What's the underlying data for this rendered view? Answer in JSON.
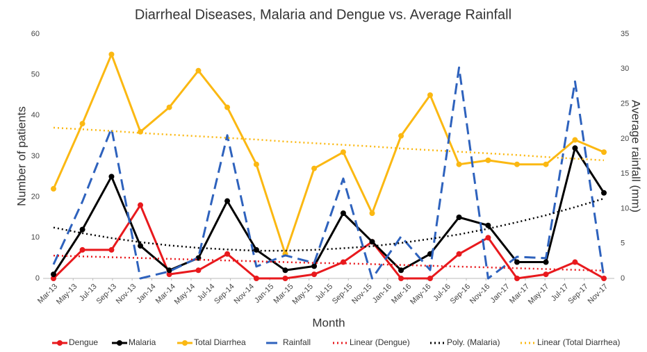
{
  "chart_data": {
    "type": "line",
    "title": "Diarrheal Diseases, Malaria and Dengue vs. Average Rainfall",
    "xlabel": "Month",
    "ylabel": "Number of patients",
    "y2label": "Average rainfall (mm)",
    "xlim": [
      0,
      28
    ],
    "xticks": [
      {
        "value": 0,
        "label": "Mar-13"
      },
      {
        "value": 1,
        "label": "May-13"
      },
      {
        "value": 2,
        "label": "Jul-13"
      },
      {
        "value": 3,
        "label": "Sep-13"
      },
      {
        "value": 4,
        "label": "Nov-13"
      },
      {
        "value": 5,
        "label": "Jan-14"
      },
      {
        "value": 6,
        "label": "Mar-14"
      },
      {
        "value": 7,
        "label": "May-14"
      },
      {
        "value": 8,
        "label": "Jul-14"
      },
      {
        "value": 9,
        "label": "Sep-14"
      },
      {
        "value": 10,
        "label": "Nov-14"
      },
      {
        "value": 11,
        "label": "Jan-15"
      },
      {
        "value": 12,
        "label": "Mar-15"
      },
      {
        "value": 13,
        "label": "May-15"
      },
      {
        "value": 14,
        "label": "Jul-15"
      },
      {
        "value": 15,
        "label": "Sep-15"
      },
      {
        "value": 16,
        "label": "Nov-15"
      },
      {
        "value": 17,
        "label": "Jan-16"
      },
      {
        "value": 18,
        "label": "Mar-16"
      },
      {
        "value": 19,
        "label": "May-16"
      },
      {
        "value": 20,
        "label": "Jul-16"
      },
      {
        "value": 21,
        "label": "Sep-16"
      },
      {
        "value": 22,
        "label": "Nov-16"
      },
      {
        "value": 23,
        "label": "Jan-17"
      },
      {
        "value": 24,
        "label": "Mar-17"
      },
      {
        "value": 25,
        "label": "May-17"
      },
      {
        "value": 26,
        "label": "Jul-17"
      },
      {
        "value": 27,
        "label": "Sep-17"
      },
      {
        "value": 28,
        "label": "Nov-17"
      }
    ],
    "x": [
      0,
      1.47,
      2.95,
      4.42,
      5.89,
      7.37,
      8.84,
      10.32,
      11.79,
      13.26,
      14.74,
      16.21,
      17.68,
      19.16,
      20.63,
      22.11,
      23.58,
      25.05,
      26.53,
      28
    ],
    "ylim": [
      0,
      60
    ],
    "yticks": [
      0,
      10,
      20,
      30,
      40,
      50,
      60
    ],
    "y2lim": [
      0,
      35
    ],
    "y2ticks": [
      0,
      5,
      10,
      15,
      20,
      25,
      30,
      35
    ],
    "series": [
      {
        "name": "Dengue",
        "color": "#e8191d",
        "style": "solid",
        "marker": true,
        "values": [
          0,
          7,
          7,
          18,
          1,
          2,
          6,
          0,
          0,
          1,
          4,
          9,
          0,
          0,
          6,
          10,
          0,
          1,
          4,
          0
        ]
      },
      {
        "name": "Malaria",
        "color": "#000000",
        "style": "solid",
        "marker": true,
        "values": [
          1,
          12,
          25,
          8,
          2,
          5,
          19,
          7,
          2,
          3,
          16,
          9,
          2,
          6,
          15,
          13,
          4,
          4,
          32,
          21
        ]
      },
      {
        "name": "Total Diarrhea",
        "color": "#fbb812",
        "style": "solid",
        "marker": true,
        "values": [
          22,
          38,
          55,
          36,
          42,
          51,
          42,
          28,
          6,
          27,
          31,
          16,
          35,
          45,
          28,
          29,
          28,
          28,
          34,
          31
        ]
      },
      {
        "name": "Rainfall",
        "color": "#2e62bd",
        "style": "dashed",
        "marker": false,
        "axis": "y2",
        "values": [
          2,
          11,
          21.5,
          0,
          1,
          3,
          20.5,
          1.7,
          3.3,
          2.2,
          14.3,
          0,
          6,
          1.2,
          30.2,
          0,
          3.1,
          2.9,
          28.2,
          0.1
        ]
      },
      {
        "name": "Linear (Dengue)",
        "color": "#e8191d",
        "style": "dotted",
        "marker": false,
        "values": [
          5.6,
          5.4,
          5.2,
          5.0,
          4.8,
          4.6,
          4.4,
          4.2,
          4.0,
          3.8,
          3.7,
          3.5,
          3.3,
          3.1,
          2.9,
          2.7,
          2.5,
          2.3,
          2.1,
          1.9
        ]
      },
      {
        "name": "Poly. (Malaria)",
        "color": "#000000",
        "style": "dotted",
        "marker": false,
        "values": [
          12.5,
          11.1,
          9.9,
          8.9,
          8.1,
          7.5,
          7.1,
          6.8,
          6.8,
          7.0,
          7.4,
          7.9,
          8.7,
          9.7,
          10.8,
          12.2,
          13.8,
          15.5,
          17.5,
          19.6
        ]
      },
      {
        "name": "Linear (Total Diarrhea)",
        "color": "#fbb812",
        "style": "dotted",
        "marker": false,
        "values": [
          37.0,
          36.6,
          36.2,
          35.7,
          35.3,
          34.9,
          34.5,
          34.1,
          33.6,
          33.2,
          32.8,
          32.4,
          31.9,
          31.5,
          31.1,
          30.7,
          30.3,
          29.8,
          29.4,
          29.0
        ]
      }
    ]
  }
}
